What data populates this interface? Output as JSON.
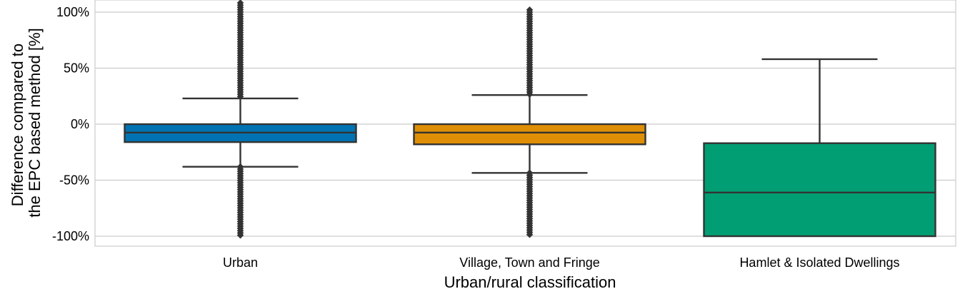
{
  "chart_data": {
    "type": "box",
    "title": "",
    "xlabel": "Urban/rural classification",
    "ylabel_lines": [
      "Difference compared to",
      "the EPC based method [%]"
    ],
    "ylim": [
      -108,
      108
    ],
    "yticks": [
      100,
      50,
      0,
      -50,
      -100
    ],
    "ytick_labels": [
      "100%",
      "50%",
      "0%",
      "-50%",
      "-100%"
    ],
    "grid": "horizontal",
    "categories": [
      "Urban",
      "Village, Town and Fringe",
      "Hamlet & Isolated Dwellings"
    ],
    "boxes": [
      {
        "category": "Urban",
        "color": "#0173b2",
        "q1": -16,
        "median": -7.5,
        "q3": 0,
        "whisker_low": -38,
        "whisker_high": 23,
        "outlier_range_high": [
          23,
          110
        ],
        "outlier_range_low": [
          -100,
          -38
        ]
      },
      {
        "category": "Village, Town and Fringe",
        "color": "#de8f05",
        "q1": -18,
        "median": -7.5,
        "q3": 0,
        "whisker_low": -43.5,
        "whisker_high": 26,
        "outlier_range_high": [
          26,
          102
        ],
        "outlier_range_low": [
          -100,
          -43.5
        ]
      },
      {
        "category": "Hamlet & Isolated Dwellings",
        "color": "#029e73",
        "q1": -100,
        "median": -61,
        "q3": -17,
        "whisker_low": -100,
        "whisker_high": 58,
        "outlier_range_high": null,
        "outlier_range_low": null
      }
    ]
  }
}
